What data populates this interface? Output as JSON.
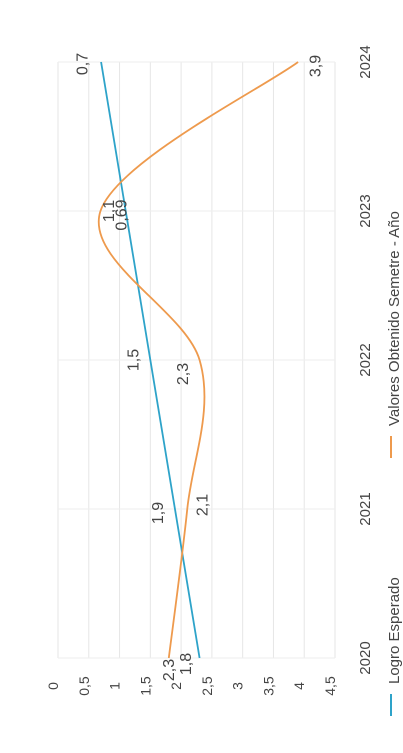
{
  "chart_data": {
    "type": "line",
    "rotated_degrees": -90,
    "x_ticks": [
      "2020",
      "2021",
      "2022",
      "2023",
      "2024"
    ],
    "xlim": [
      2020,
      2024
    ],
    "y_ticks": [
      "0",
      "0,5",
      "1",
      "1,5",
      "2",
      "2,5",
      "3",
      "3,5",
      "4",
      "4,5"
    ],
    "ylim": [
      0,
      4.5
    ],
    "grid": true,
    "legend_position": "bottom",
    "series": [
      {
        "name": "Logro Esperado",
        "color": "#2ea3c9",
        "points": [
          {
            "x": 2020,
            "y": 2.3,
            "label": "2,3"
          },
          {
            "x": 2021,
            "y": 1.9,
            "label": "1,9"
          },
          {
            "x": 2022,
            "y": 1.5,
            "label": "1,5"
          },
          {
            "x": 2023,
            "y": 1.1,
            "label": "1,1"
          },
          {
            "x": 2024,
            "y": 0.7,
            "label": "0,7"
          }
        ]
      },
      {
        "name": "Valores Obtenido Semetre - Año",
        "color": "#ee9a4d",
        "points": [
          {
            "x": 2020,
            "y": 1.8,
            "label": "1,8"
          },
          {
            "x": 2021,
            "y": 2.1,
            "label": "2,1"
          },
          {
            "x": 2022,
            "y": 2.3,
            "label": "2,3"
          },
          {
            "x": 2023,
            "y": 0.69,
            "label": "0,69"
          },
          {
            "x": 2024,
            "y": 3.9,
            "label": "3,9"
          }
        ]
      }
    ]
  }
}
